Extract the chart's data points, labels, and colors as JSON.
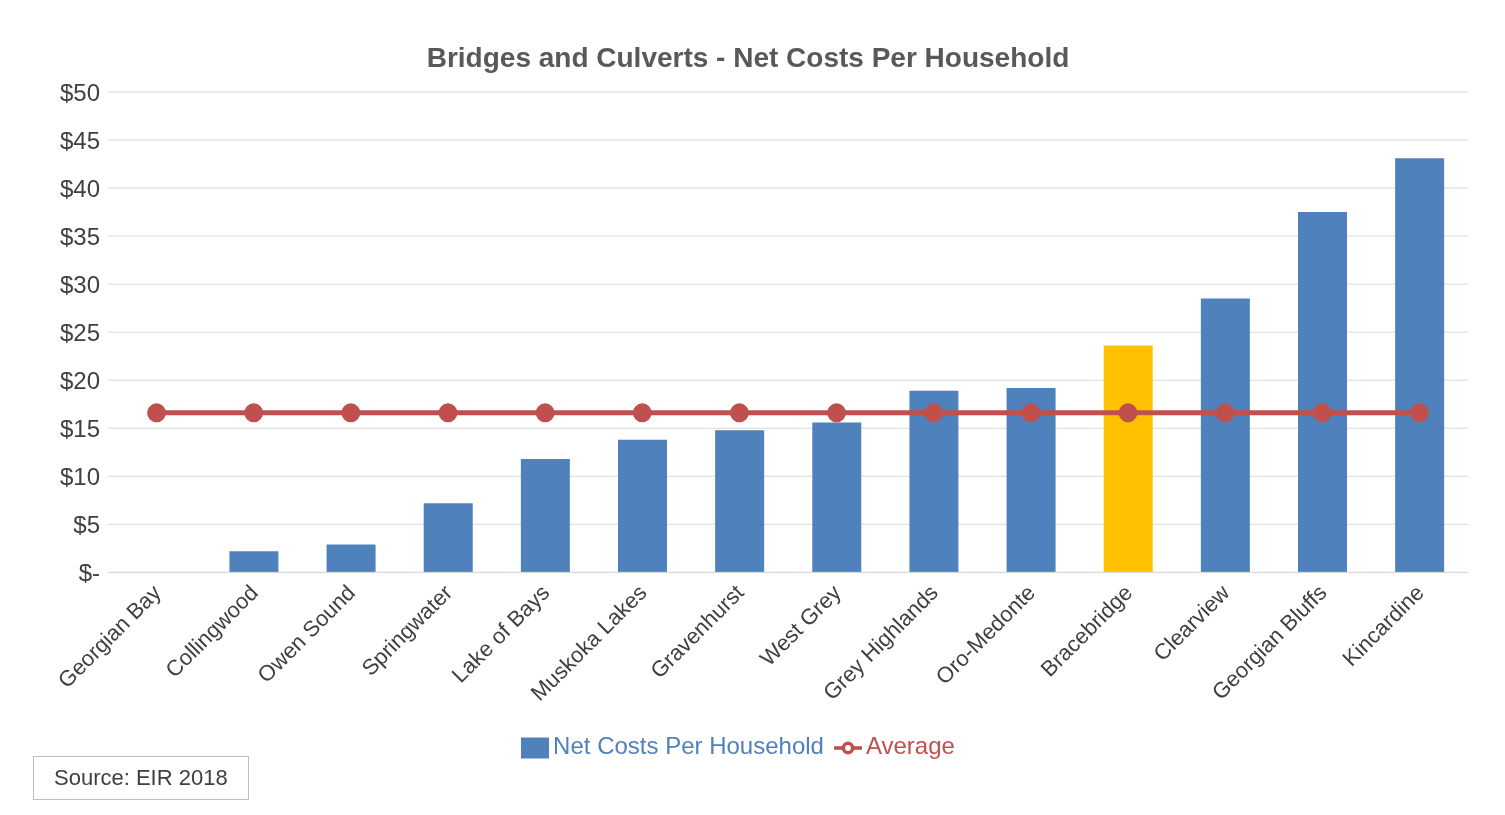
{
  "chart_data": {
    "type": "bar",
    "title": "Bridges and Culverts - Net Costs Per Household",
    "categories": [
      "Georgian Bay",
      "Collingwood",
      "Owen Sound",
      "Springwater",
      "Lake of Bays",
      "Muskoka Lakes",
      "Gravenhurst",
      "West Grey",
      "Grey Highlands",
      "Oro-Medonte",
      "Bracebridge",
      "Clearview",
      "Georgian Bluffs",
      "Kincardine"
    ],
    "series": [
      {
        "name": "Net Costs Per Household",
        "colors": [
          "#4f81bd",
          "#4f81bd",
          "#4f81bd",
          "#4f81bd",
          "#4f81bd",
          "#4f81bd",
          "#4f81bd",
          "#4f81bd",
          "#4f81bd",
          "#4f81bd",
          "#ffc000",
          "#4f81bd",
          "#4f81bd",
          "#4f81bd"
        ],
        "values": [
          0,
          2.2,
          2.9,
          7.2,
          11.8,
          13.8,
          14.8,
          15.6,
          18.9,
          19.2,
          23.6,
          28.5,
          37.5,
          43.1
        ]
      },
      {
        "name": "Average",
        "type": "line",
        "color": "#c0504d",
        "values": [
          16.6,
          16.6,
          16.6,
          16.6,
          16.6,
          16.6,
          16.6,
          16.6,
          16.6,
          16.6,
          16.6,
          16.6,
          16.6,
          16.6
        ]
      }
    ],
    "ylim": [
      0,
      50
    ],
    "yticks": [
      {
        "value": 0,
        "label": "$-"
      },
      {
        "value": 5,
        "label": "$5"
      },
      {
        "value": 10,
        "label": "$10"
      },
      {
        "value": 15,
        "label": "$15"
      },
      {
        "value": 20,
        "label": "$20"
      },
      {
        "value": 25,
        "label": "$25"
      },
      {
        "value": 30,
        "label": "$30"
      },
      {
        "value": 35,
        "label": "$35"
      },
      {
        "value": 40,
        "label": "$40"
      },
      {
        "value": 45,
        "label": "$45"
      },
      {
        "value": 50,
        "label": "$50"
      }
    ],
    "grid": "y",
    "legend": "bottom",
    "marker": "circle",
    "annotations": [
      "Source: EIR 2018"
    ]
  }
}
